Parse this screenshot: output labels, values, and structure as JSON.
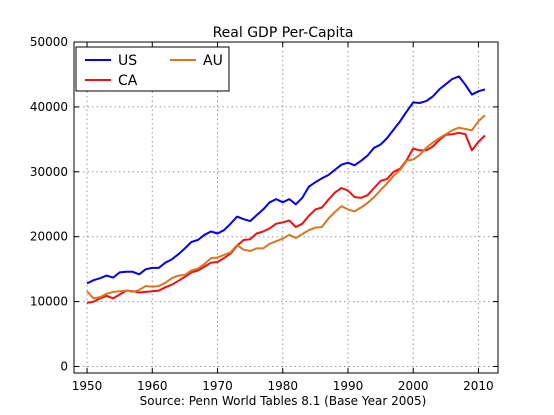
{
  "chart_data": {
    "type": "line",
    "title": "Real GDP Per-Capita",
    "xlabel": "Source: Penn World Tables 8.1 (Base Year 2005)",
    "ylabel": "",
    "xlim": [
      1948,
      2013
    ],
    "ylim": [
      -1000,
      50000
    ],
    "xticks": [
      1950,
      1960,
      1970,
      1980,
      1990,
      2000,
      2010
    ],
    "yticks": [
      0,
      10000,
      20000,
      30000,
      40000,
      50000
    ],
    "grid": true,
    "legend_position": "top-left",
    "x": [
      1950,
      1951,
      1952,
      1953,
      1954,
      1955,
      1956,
      1957,
      1958,
      1959,
      1960,
      1961,
      1962,
      1963,
      1964,
      1965,
      1966,
      1967,
      1968,
      1969,
      1970,
      1971,
      1972,
      1973,
      1974,
      1975,
      1976,
      1977,
      1978,
      1979,
      1980,
      1981,
      1982,
      1983,
      1984,
      1985,
      1986,
      1987,
      1988,
      1989,
      1990,
      1991,
      1992,
      1993,
      1994,
      1995,
      1996,
      1997,
      1998,
      1999,
      2000,
      2001,
      2002,
      2003,
      2004,
      2005,
      2006,
      2007,
      2008,
      2009,
      2010,
      2011
    ],
    "series": [
      {
        "name": "US",
        "color": "#0000ee",
        "values": [
          12800,
          13300,
          13600,
          14000,
          13700,
          14500,
          14600,
          14600,
          14200,
          15000,
          15200,
          15200,
          16000,
          16500,
          17300,
          18200,
          19200,
          19500,
          20300,
          20800,
          20500,
          21000,
          22000,
          23100,
          22700,
          22400,
          23300,
          24200,
          25300,
          25800,
          25300,
          25800,
          25000,
          26000,
          27700,
          28400,
          29000,
          29500,
          30300,
          31100,
          31400,
          31000,
          31700,
          32500,
          33700,
          34200,
          35200,
          36500,
          37800,
          39300,
          40700,
          40600,
          40900,
          41600,
          42700,
          43500,
          44300,
          44700,
          43400,
          41900,
          42400,
          42700
        ]
      },
      {
        "name": "CA",
        "color": "#ee1111",
        "values": [
          9800,
          10000,
          10500,
          10900,
          10500,
          11100,
          11700,
          11600,
          11400,
          11500,
          11600,
          11700,
          12200,
          12600,
          13200,
          13800,
          14500,
          14800,
          15400,
          16000,
          16100,
          16700,
          17400,
          18600,
          19500,
          19600,
          20500,
          20800,
          21300,
          22000,
          22200,
          22500,
          21500,
          22000,
          23200,
          24200,
          24500,
          25700,
          26800,
          27500,
          27100,
          26100,
          26000,
          26400,
          27500,
          28600,
          28900,
          30000,
          30500,
          31800,
          33600,
          33300,
          33300,
          33900,
          34900,
          35700,
          35800,
          36000,
          35800,
          33300,
          34600,
          35600
        ]
      },
      {
        "name": "AU",
        "color": "#d97822",
        "values": [
          11600,
          10500,
          10700,
          11200,
          11500,
          11600,
          11700,
          11500,
          11800,
          12400,
          12300,
          12400,
          12900,
          13600,
          14000,
          14100,
          14800,
          15100,
          15800,
          16700,
          16800,
          17200,
          17600,
          18700,
          18000,
          17800,
          18200,
          18200,
          18900,
          19300,
          19700,
          20300,
          19800,
          20400,
          21000,
          21400,
          21500,
          22800,
          23800,
          24700,
          24200,
          23900,
          24500,
          25200,
          26100,
          27200,
          28200,
          29400,
          30300,
          31700,
          31900,
          32600,
          33700,
          34500,
          35200,
          35800,
          36400,
          36800,
          36600,
          36400,
          37800,
          38700
        ]
      }
    ]
  }
}
